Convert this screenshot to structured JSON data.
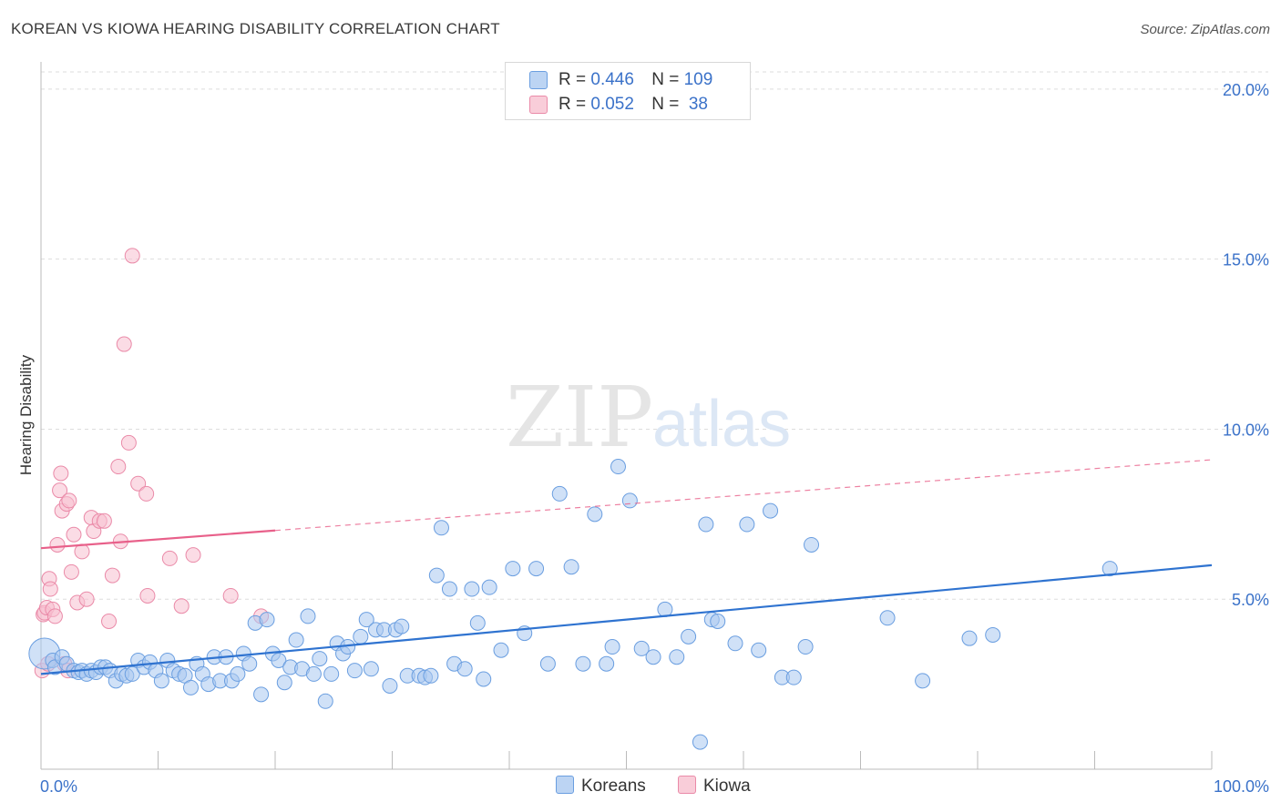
{
  "title": "KOREAN VS KIOWA HEARING DISABILITY CORRELATION CHART",
  "source": "Source: ZipAtlas.com",
  "watermark": {
    "zip": "ZIP",
    "atlas": "atlas"
  },
  "legend": {
    "rows": [
      {
        "r_label": "R = ",
        "r_value": "0.446",
        "n_label": "N = ",
        "n_value": "109"
      },
      {
        "r_label": "R = ",
        "r_value": "0.052",
        "n_label": "N = ",
        "n_value": " 38"
      }
    ]
  },
  "colors": {
    "koreans_fill": "#aac8f0",
    "koreans_stroke": "#6a9ee0",
    "koreans_line": "#2f73d0",
    "kiowa_fill": "#f7bfd0",
    "kiowa_stroke": "#ea8aa8",
    "kiowa_line": "#e8608a",
    "axis_label": "#3b72c9",
    "grid": "#dddddd"
  },
  "chart_data": {
    "type": "scatter",
    "title": "KOREAN VS KIOWA HEARING DISABILITY CORRELATION CHART",
    "xlabel": "",
    "ylabel": "Hearing Disability",
    "xlim": [
      0,
      100
    ],
    "ylim": [
      0,
      20.8
    ],
    "x_tick_labels": [
      "0.0%",
      "100.0%"
    ],
    "y_ticks": [
      5,
      10,
      15,
      20
    ],
    "y_tick_labels": [
      "5.0%",
      "10.0%",
      "15.0%",
      "20.0%"
    ],
    "legend_position": "bottom-center",
    "series": [
      {
        "name": "Koreans",
        "r": 0.446,
        "n": 109,
        "trend": {
          "x": [
            0,
            100
          ],
          "y": [
            2.8,
            6.0
          ],
          "dashed_from": null
        },
        "points": [
          [
            0.3,
            3.4
          ],
          [
            1.0,
            3.2
          ],
          [
            1.2,
            3.0
          ],
          [
            1.8,
            3.3
          ],
          [
            2.2,
            3.1
          ],
          [
            2.8,
            2.9
          ],
          [
            3.2,
            2.85
          ],
          [
            3.5,
            2.9
          ],
          [
            3.9,
            2.8
          ],
          [
            4.3,
            2.9
          ],
          [
            4.7,
            2.85
          ],
          [
            5.1,
            3.0
          ],
          [
            5.5,
            3.0
          ],
          [
            5.9,
            2.9
          ],
          [
            6.4,
            2.6
          ],
          [
            6.9,
            2.8
          ],
          [
            7.3,
            2.75
          ],
          [
            7.8,
            2.8
          ],
          [
            8.3,
            3.2
          ],
          [
            8.8,
            3.0
          ],
          [
            9.3,
            3.15
          ],
          [
            9.8,
            2.9
          ],
          [
            10.3,
            2.6
          ],
          [
            10.8,
            3.2
          ],
          [
            11.3,
            2.9
          ],
          [
            11.8,
            2.8
          ],
          [
            12.3,
            2.75
          ],
          [
            12.8,
            2.4
          ],
          [
            13.3,
            3.1
          ],
          [
            13.8,
            2.8
          ],
          [
            14.3,
            2.5
          ],
          [
            14.8,
            3.3
          ],
          [
            15.3,
            2.6
          ],
          [
            15.8,
            3.3
          ],
          [
            16.3,
            2.6
          ],
          [
            16.8,
            2.8
          ],
          [
            17.3,
            3.4
          ],
          [
            17.8,
            3.1
          ],
          [
            18.3,
            4.3
          ],
          [
            18.8,
            2.2
          ],
          [
            19.3,
            4.4
          ],
          [
            19.8,
            3.4
          ],
          [
            20.3,
            3.2
          ],
          [
            20.8,
            2.55
          ],
          [
            21.3,
            3.0
          ],
          [
            21.8,
            3.8
          ],
          [
            22.3,
            2.95
          ],
          [
            22.8,
            4.5
          ],
          [
            23.3,
            2.8
          ],
          [
            23.8,
            3.25
          ],
          [
            24.3,
            2.0
          ],
          [
            24.8,
            2.8
          ],
          [
            25.3,
            3.7
          ],
          [
            25.8,
            3.4
          ],
          [
            26.2,
            3.6
          ],
          [
            26.8,
            2.9
          ],
          [
            27.3,
            3.9
          ],
          [
            27.8,
            4.4
          ],
          [
            28.2,
            2.95
          ],
          [
            28.6,
            4.1
          ],
          [
            29.3,
            4.1
          ],
          [
            29.8,
            2.45
          ],
          [
            30.3,
            4.1
          ],
          [
            30.8,
            4.2
          ],
          [
            31.3,
            2.75
          ],
          [
            32.3,
            2.75
          ],
          [
            32.8,
            2.7
          ],
          [
            33.3,
            2.75
          ],
          [
            33.8,
            5.7
          ],
          [
            34.2,
            7.1
          ],
          [
            34.9,
            5.3
          ],
          [
            35.3,
            3.1
          ],
          [
            36.2,
            2.95
          ],
          [
            36.8,
            5.3
          ],
          [
            37.3,
            4.3
          ],
          [
            37.8,
            2.65
          ],
          [
            38.3,
            5.35
          ],
          [
            39.3,
            3.5
          ],
          [
            40.3,
            5.9
          ],
          [
            41.3,
            4.0
          ],
          [
            42.3,
            5.9
          ],
          [
            43.3,
            3.1
          ],
          [
            44.3,
            8.1
          ],
          [
            45.3,
            5.95
          ],
          [
            46.3,
            3.1
          ],
          [
            47.3,
            7.5
          ],
          [
            48.3,
            3.1
          ],
          [
            48.8,
            3.6
          ],
          [
            49.3,
            8.9
          ],
          [
            50.3,
            7.9
          ],
          [
            51.3,
            3.55
          ],
          [
            52.3,
            3.3
          ],
          [
            53.3,
            4.7
          ],
          [
            54.3,
            3.3
          ],
          [
            55.3,
            3.9
          ],
          [
            56.3,
            0.8
          ],
          [
            56.8,
            7.2
          ],
          [
            57.3,
            4.4
          ],
          [
            57.8,
            4.35
          ],
          [
            59.3,
            3.7
          ],
          [
            60.3,
            7.2
          ],
          [
            61.3,
            3.5
          ],
          [
            62.3,
            7.6
          ],
          [
            63.3,
            2.7
          ],
          [
            64.3,
            2.7
          ],
          [
            65.3,
            3.6
          ],
          [
            65.8,
            6.6
          ],
          [
            72.3,
            4.45
          ],
          [
            75.3,
            2.6
          ],
          [
            79.3,
            3.85
          ],
          [
            81.3,
            3.95
          ],
          [
            91.3,
            5.9
          ]
        ]
      },
      {
        "name": "Kiowa",
        "r": 0.052,
        "n": 38,
        "trend": {
          "x": [
            0,
            100
          ],
          "y": [
            6.5,
            9.1
          ],
          "dashed_from": 20
        },
        "points": [
          [
            0.1,
            2.9
          ],
          [
            0.2,
            4.55
          ],
          [
            0.3,
            4.6
          ],
          [
            0.5,
            4.75
          ],
          [
            0.6,
            3.1
          ],
          [
            0.7,
            5.6
          ],
          [
            0.8,
            5.3
          ],
          [
            1.0,
            4.7
          ],
          [
            1.2,
            4.5
          ],
          [
            1.4,
            6.6
          ],
          [
            1.6,
            8.2
          ],
          [
            1.7,
            8.7
          ],
          [
            1.8,
            7.6
          ],
          [
            2.0,
            3.1
          ],
          [
            2.2,
            7.8
          ],
          [
            2.3,
            2.9
          ],
          [
            2.4,
            7.9
          ],
          [
            2.6,
            5.8
          ],
          [
            2.8,
            6.9
          ],
          [
            3.1,
            4.9
          ],
          [
            3.5,
            6.4
          ],
          [
            3.9,
            5.0
          ],
          [
            4.3,
            7.4
          ],
          [
            4.5,
            7.0
          ],
          [
            5.0,
            7.3
          ],
          [
            5.4,
            7.3
          ],
          [
            5.8,
            4.35
          ],
          [
            6.1,
            5.7
          ],
          [
            6.6,
            8.9
          ],
          [
            6.8,
            6.7
          ],
          [
            7.1,
            12.5
          ],
          [
            7.5,
            9.6
          ],
          [
            7.8,
            15.1
          ],
          [
            8.3,
            8.4
          ],
          [
            9.0,
            8.1
          ],
          [
            9.1,
            5.1
          ],
          [
            11.0,
            6.2
          ],
          [
            12.0,
            4.8
          ],
          [
            13.0,
            6.3
          ],
          [
            16.2,
            5.1
          ],
          [
            18.8,
            4.5
          ]
        ]
      }
    ]
  },
  "bottom_legend": {
    "koreans": "Koreans",
    "kiowa": "Kiowa"
  }
}
